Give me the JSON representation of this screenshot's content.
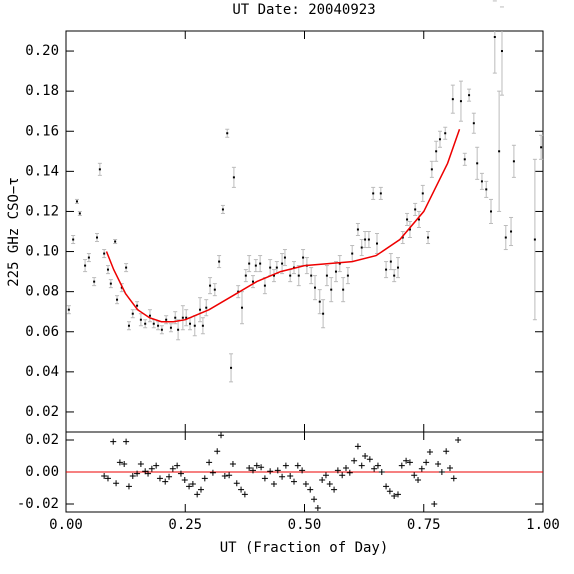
{
  "chart_data": [
    {
      "type": "scatter",
      "title": "UT Date: 20040923",
      "y_label": "225 GHz CSO−τ",
      "x_label": "UT (Fraction of Day)",
      "xlim": [
        0,
        1
      ],
      "xticks": [
        {
          "value": 0,
          "label": "0.00"
        },
        0.25,
        {
          "value": 0.5,
          "label": "0.50"
        },
        0.75,
        {
          "value": 1,
          "label": "1.00"
        }
      ],
      "ylim": [
        0.01,
        0.21
      ],
      "yticks": [
        0.02,
        0.04,
        0.06,
        0.08,
        {
          "value": 0.1,
          "label": "0.10"
        },
        0.12,
        0.14,
        0.16,
        0.18,
        {
          "value": 0.2,
          "label": "0.20"
        }
      ],
      "points": {
        "color": "#000000",
        "error_color": "#bbbbbb",
        "x": [
          0.006,
          0.015,
          0.023,
          0.029,
          0.04,
          0.048,
          0.059,
          0.065,
          0.071,
          0.08,
          0.088,
          0.094,
          0.103,
          0.107,
          0.117,
          0.126,
          0.132,
          0.14,
          0.149,
          0.157,
          0.166,
          0.176,
          0.184,
          0.193,
          0.201,
          0.21,
          0.22,
          0.229,
          0.235,
          0.245,
          0.252,
          0.26,
          0.27,
          0.281,
          0.287,
          0.294,
          0.302,
          0.312,
          0.321,
          0.329,
          0.338,
          0.346,
          0.352,
          0.361,
          0.369,
          0.377,
          0.384,
          0.392,
          0.398,
          0.407,
          0.417,
          0.428,
          0.436,
          0.442,
          0.453,
          0.459,
          0.47,
          0.478,
          0.488,
          0.497,
          0.505,
          0.514,
          0.522,
          0.532,
          0.539,
          0.547,
          0.556,
          0.566,
          0.574,
          0.581,
          0.591,
          0.6,
          0.612,
          0.62,
          0.627,
          0.635,
          0.644,
          0.652,
          0.66,
          0.671,
          0.681,
          0.688,
          0.696,
          0.706,
          0.715,
          0.721,
          0.732,
          0.74,
          0.748,
          0.759,
          0.767,
          0.776,
          0.784,
          0.795,
          0.811,
          0.828,
          0.836,
          0.845,
          0.855,
          0.862,
          0.872,
          0.881,
          0.891,
          0.899,
          0.908,
          0.914,
          0.922,
          0.933,
          0.939,
          0.983,
          0.996
        ],
        "values": [
          0.071,
          0.106,
          0.125,
          0.119,
          0.093,
          0.097,
          0.085,
          0.107,
          0.141,
          0.099,
          0.091,
          0.084,
          0.105,
          0.076,
          0.082,
          0.092,
          0.063,
          0.069,
          0.073,
          0.066,
          0.064,
          0.068,
          0.064,
          0.063,
          0.061,
          0.066,
          0.062,
          0.067,
          0.061,
          0.067,
          0.067,
          0.064,
          0.063,
          0.071,
          0.063,
          0.072,
          0.083,
          0.081,
          0.095,
          0.121,
          0.159,
          0.042,
          0.137,
          0.08,
          0.072,
          0.088,
          0.094,
          0.085,
          0.093,
          0.094,
          0.083,
          0.092,
          0.088,
          0.092,
          0.094,
          0.097,
          0.088,
          0.092,
          0.088,
          0.097,
          0.093,
          0.088,
          0.082,
          0.075,
          0.069,
          0.088,
          0.081,
          0.09,
          0.094,
          0.081,
          0.088,
          0.099,
          0.111,
          0.102,
          0.106,
          0.106,
          0.129,
          0.104,
          0.129,
          0.091,
          0.095,
          0.088,
          0.092,
          0.107,
          0.116,
          0.111,
          0.121,
          0.116,
          0.129,
          0.107,
          0.141,
          0.15,
          0.156,
          0.159,
          0.176,
          0.175,
          0.146,
          0.178,
          0.164,
          0.144,
          0.135,
          0.131,
          0.12,
          0.207,
          0.15,
          0.2,
          0.107,
          0.11,
          0.145,
          0.106,
          0.152
        ],
        "errors": [
          0.002,
          0.002,
          0.001,
          0.001,
          0.003,
          0.002,
          0.002,
          0.002,
          0.003,
          0.002,
          0.002,
          0.002,
          0.001,
          0.002,
          0.002,
          0.002,
          0.002,
          0.002,
          0.002,
          0.003,
          0.002,
          0.003,
          0.002,
          0.002,
          0.002,
          0.002,
          0.002,
          0.003,
          0.005,
          0.006,
          0.004,
          0.003,
          0.005,
          0.006,
          0.004,
          0.004,
          0.004,
          0.003,
          0.003,
          0.002,
          0.002,
          0.007,
          0.005,
          0.003,
          0.008,
          0.003,
          0.004,
          0.003,
          0.003,
          0.004,
          0.004,
          0.004,
          0.003,
          0.003,
          0.005,
          0.004,
          0.003,
          0.003,
          0.005,
          0.004,
          0.004,
          0.004,
          0.006,
          0.006,
          0.007,
          0.005,
          0.006,
          0.005,
          0.004,
          0.006,
          0.004,
          0.004,
          0.003,
          0.004,
          0.004,
          0.004,
          0.003,
          0.005,
          0.003,
          0.004,
          0.004,
          0.003,
          0.005,
          0.003,
          0.003,
          0.004,
          0.003,
          0.004,
          0.004,
          0.003,
          0.004,
          0.005,
          0.004,
          0.003,
          0.007,
          0.01,
          0.003,
          0.003,
          0.005,
          0.008,
          0.004,
          0.004,
          0.006,
          0.018,
          0.03,
          0.022,
          0.006,
          0.007,
          0.008,
          0.04,
          0.006
        ]
      },
      "fit": {
        "color": "#ee0000",
        "x": [
          0.085,
          0.1,
          0.125,
          0.15,
          0.175,
          0.2,
          0.225,
          0.25,
          0.3,
          0.35,
          0.4,
          0.45,
          0.5,
          0.55,
          0.6,
          0.65,
          0.7,
          0.75,
          0.8,
          0.825
        ],
        "values": [
          0.1,
          0.091,
          0.079,
          0.071,
          0.067,
          0.065,
          0.065,
          0.066,
          0.071,
          0.078,
          0.085,
          0.09,
          0.093,
          0.094,
          0.095,
          0.098,
          0.106,
          0.12,
          0.144,
          0.161
        ]
      }
    },
    {
      "type": "scatter",
      "xlim": [
        0,
        1
      ],
      "ylim": [
        -0.025,
        0.025
      ],
      "yticks": [
        -0.02,
        {
          "value": 0,
          "label": "0.00"
        },
        0.02
      ],
      "baseline": 0,
      "baseline_color": "#ee0000",
      "color": "#000000",
      "x": [
        0.08,
        0.088,
        0.099,
        0.105,
        0.113,
        0.122,
        0.126,
        0.132,
        0.14,
        0.149,
        0.157,
        0.166,
        0.172,
        0.18,
        0.189,
        0.197,
        0.208,
        0.216,
        0.224,
        0.233,
        0.241,
        0.249,
        0.258,
        0.266,
        0.275,
        0.283,
        0.291,
        0.3,
        0.308,
        0.317,
        0.325,
        0.333,
        0.342,
        0.35,
        0.358,
        0.367,
        0.375,
        0.384,
        0.392,
        0.4,
        0.409,
        0.417,
        0.428,
        0.436,
        0.444,
        0.453,
        0.461,
        0.47,
        0.478,
        0.486,
        0.495,
        0.503,
        0.512,
        0.52,
        0.528,
        0.537,
        0.545,
        0.553,
        0.562,
        0.57,
        0.579,
        0.587,
        0.595,
        0.604,
        0.612,
        0.62,
        0.627,
        0.637,
        0.646,
        0.654,
        0.662,
        0.671,
        0.679,
        0.688,
        0.696,
        0.704,
        0.713,
        0.721,
        0.73,
        0.738,
        0.746,
        0.755,
        0.763,
        0.772,
        0.78,
        0.788,
        0.797,
        0.805,
        0.813,
        0.822
      ],
      "values": [
        -0.0025,
        -0.004,
        0.019,
        -0.007,
        0.006,
        0.005,
        0.019,
        -0.009,
        -0.0025,
        -0.001,
        0.005,
        0.0005,
        -0.001,
        0.002,
        0.004,
        -0.004,
        -0.006,
        -0.003,
        0.002,
        0.004,
        -0.001,
        -0.005,
        -0.009,
        -0.0075,
        -0.014,
        -0.011,
        -0.004,
        0.006,
        -0.0005,
        0.013,
        0.023,
        -0.0025,
        -0.002,
        0.005,
        -0.007,
        -0.011,
        -0.014,
        0.0025,
        0.001,
        0.004,
        0.003,
        -0.004,
        0.0005,
        -0.0075,
        0.001,
        -0.003,
        0.004,
        -0.0025,
        -0.006,
        0.004,
        0.001,
        -0.0075,
        -0.011,
        -0.017,
        -0.0225,
        -0.005,
        -0.002,
        -0.0075,
        -0.011,
        0.001,
        -0.002,
        0.0025,
        -0.0005,
        0.007,
        0.016,
        0.004,
        0.01,
        0.008,
        0.002,
        0.004,
        0,
        -0.009,
        -0.012,
        -0.015,
        -0.014,
        0.004,
        0.007,
        0.006,
        -0.002,
        -0.005,
        0.002,
        0.006,
        0.0125,
        -0.02,
        0.005,
        0,
        0.013,
        0.0025,
        -0.004,
        0.02
      ]
    }
  ]
}
